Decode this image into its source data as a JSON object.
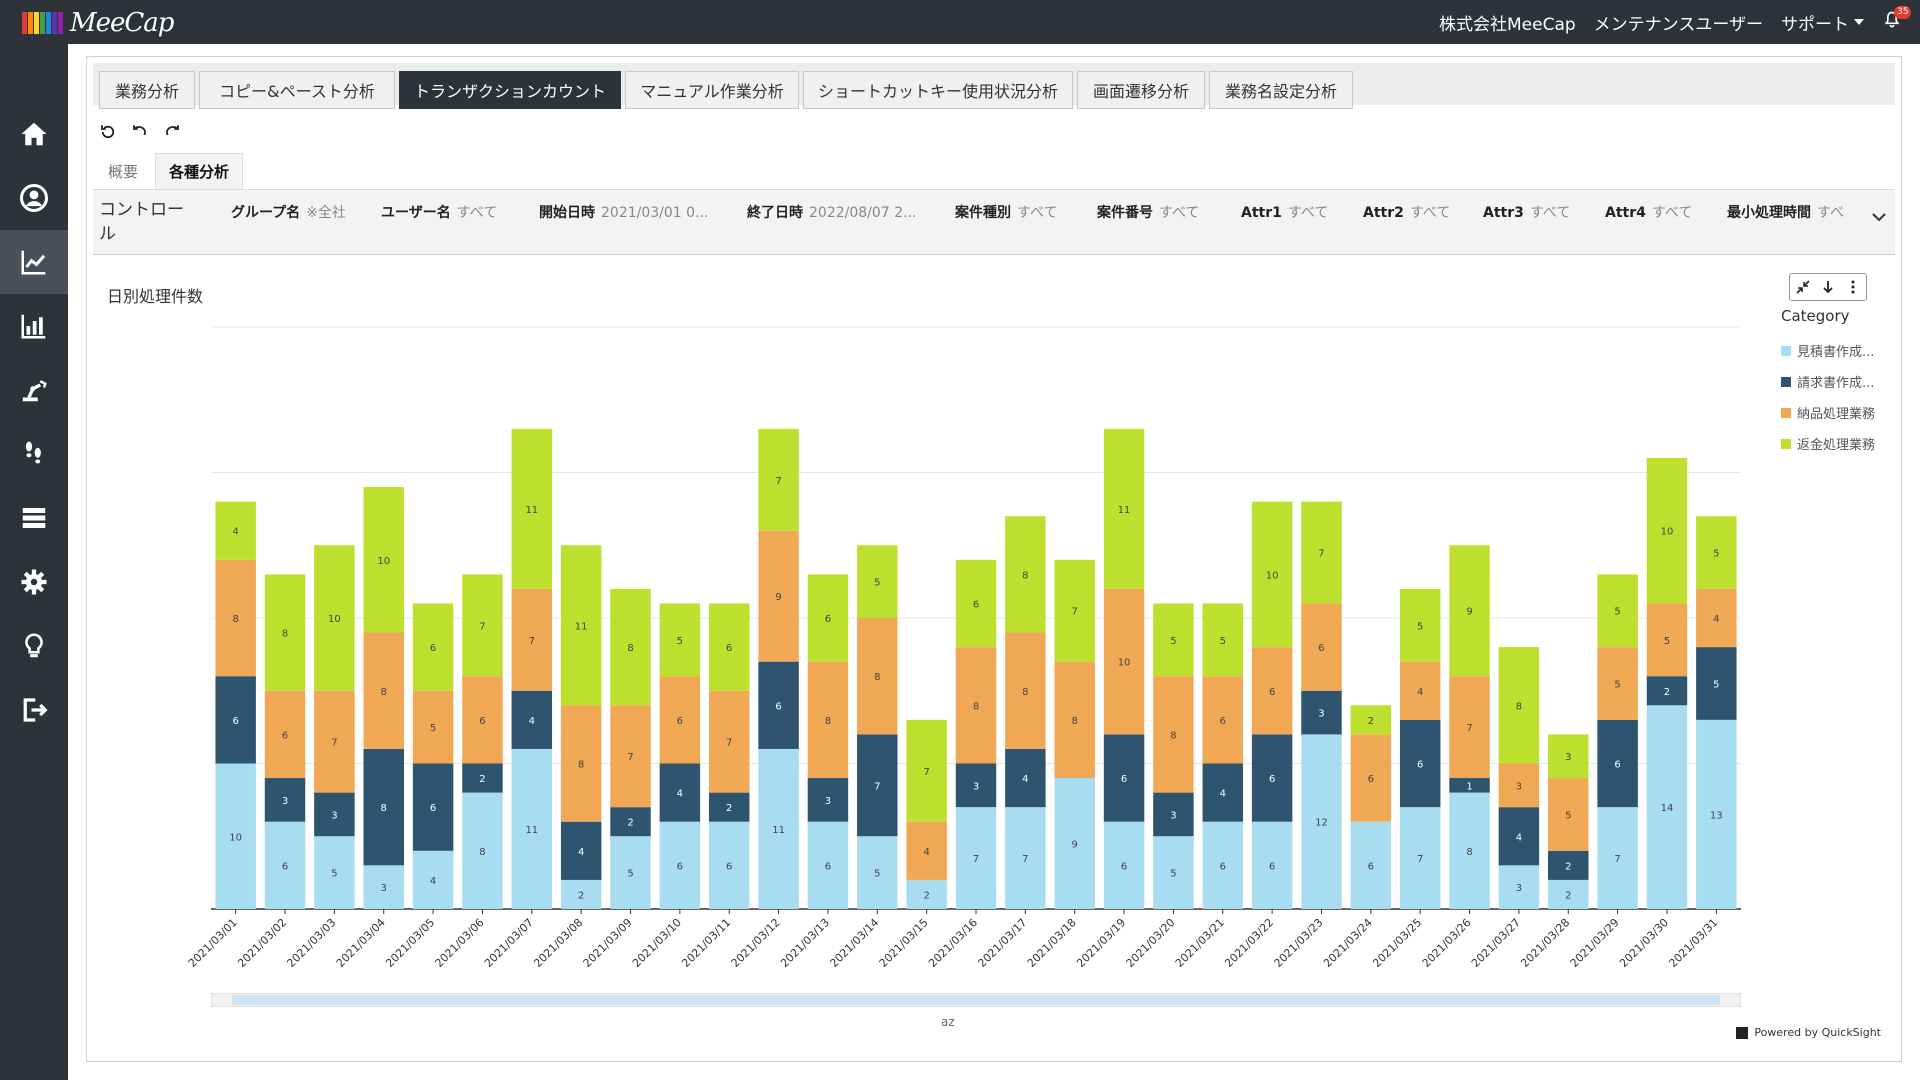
{
  "app": {
    "logo_text": "MeeCap",
    "logo_colors": [
      "#e53935",
      "#fb8c00",
      "#fdd835",
      "#43a047",
      "#1e88e5",
      "#5e35b1",
      "#8e24aa"
    ],
    "company": "株式会社MeeCap",
    "user": "メンテナンスユーザー",
    "support": "サポート",
    "notification_count": "35"
  },
  "sidebar": {
    "items": [
      {
        "icon": "home-icon"
      },
      {
        "icon": "user-icon"
      },
      {
        "icon": "line-chart-icon",
        "active": true
      },
      {
        "icon": "bar-chart-icon"
      },
      {
        "icon": "robot-arm-icon"
      },
      {
        "icon": "footsteps-icon"
      },
      {
        "icon": "server-icon"
      },
      {
        "icon": "gear-icon"
      },
      {
        "icon": "lightbulb-icon"
      },
      {
        "icon": "logout-icon"
      }
    ]
  },
  "tabs": [
    {
      "label": "業務分析"
    },
    {
      "label": "コピー&ペースト分析"
    },
    {
      "label": "トランザクションカウント",
      "active": true
    },
    {
      "label": "マニュアル作業分析"
    },
    {
      "label": "ショートカットキー使用状況分析"
    },
    {
      "label": "画面遷移分析"
    },
    {
      "label": "業務名設定分析"
    }
  ],
  "subtabs": [
    {
      "label": "概要"
    },
    {
      "label": "各種分析",
      "active": true
    }
  ],
  "controls": {
    "title": "コントロール",
    "filters": [
      {
        "label": "グループ名",
        "value": "※全社"
      },
      {
        "label": "ユーザー名",
        "value": "すべて"
      },
      {
        "label": "開始日時",
        "value": "2021/03/01 0..."
      },
      {
        "label": "終了日時",
        "value": "2022/08/07 2..."
      },
      {
        "label": "案件種別",
        "value": "すべて"
      },
      {
        "label": "案件番号",
        "value": "すべて"
      },
      {
        "label": "Attr1",
        "value": "すべて"
      },
      {
        "label": "Attr2",
        "value": "すべて"
      },
      {
        "label": "Attr3",
        "value": "すべて"
      },
      {
        "label": "Attr4",
        "value": "すべて"
      },
      {
        "label": "最小処理時間",
        "value": "すべ"
      }
    ]
  },
  "chart_data": {
    "type": "bar",
    "stacked": true,
    "title": "日別処理件数",
    "legend_title": "Category",
    "legend_position": "right",
    "categories": [
      "2021/03/01",
      "2021/03/02",
      "2021/03/03",
      "2021/03/04",
      "2021/03/05",
      "2021/03/06",
      "2021/03/07",
      "2021/03/08",
      "2021/03/09",
      "2021/03/10",
      "2021/03/11",
      "2021/03/12",
      "2021/03/13",
      "2021/03/14",
      "2021/03/15",
      "2021/03/16",
      "2021/03/17",
      "2021/03/18",
      "2021/03/19",
      "2021/03/20",
      "2021/03/21",
      "2021/03/22",
      "2021/03/23",
      "2021/03/24",
      "2021/03/25",
      "2021/03/26",
      "2021/03/27",
      "2021/03/28",
      "2021/03/29",
      "2021/03/30",
      "2021/03/31"
    ],
    "series": [
      {
        "name": "見積書作成...",
        "color": "#a8dcf0",
        "values": [
          10,
          6,
          5,
          3,
          4,
          8,
          11,
          2,
          5,
          6,
          6,
          11,
          6,
          5,
          2,
          7,
          7,
          9,
          6,
          5,
          6,
          6,
          12,
          6,
          7,
          8,
          3,
          2,
          7,
          14,
          13
        ]
      },
      {
        "name": "請求書作成...",
        "color": "#2e5470",
        "values": [
          6,
          3,
          3,
          8,
          6,
          2,
          4,
          4,
          2,
          4,
          2,
          6,
          3,
          7,
          0,
          3,
          4,
          0,
          6,
          3,
          4,
          6,
          3,
          0,
          6,
          1,
          4,
          2,
          6,
          2,
          5
        ]
      },
      {
        "name": "納品処理業務",
        "color": "#f0a854",
        "values": [
          8,
          6,
          7,
          8,
          5,
          6,
          7,
          8,
          7,
          6,
          7,
          9,
          8,
          8,
          4,
          8,
          8,
          8,
          10,
          8,
          6,
          6,
          6,
          6,
          4,
          7,
          3,
          5,
          5,
          5,
          4
        ]
      },
      {
        "name": "返金処理業務",
        "color": "#bde02e",
        "values": [
          4,
          8,
          10,
          10,
          6,
          7,
          11,
          11,
          8,
          5,
          6,
          7,
          6,
          5,
          7,
          6,
          8,
          7,
          11,
          5,
          5,
          10,
          7,
          2,
          5,
          9,
          8,
          3,
          5,
          10,
          5
        ]
      }
    ],
    "ylim": [
      0,
      40
    ],
    "grid": true,
    "label_colors": {
      "dark": "#444444",
      "light": "#ffffff"
    }
  },
  "chart_ui": {
    "sort_label": "az",
    "powered_by": "Powered by QuickSight"
  }
}
